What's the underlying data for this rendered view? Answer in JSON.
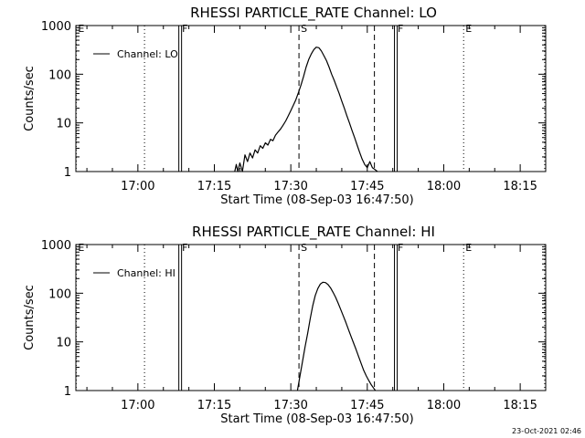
{
  "chart_data": [
    {
      "type": "line",
      "title": "RHESSI PARTICLE_RATE Channel: LO",
      "xlabel": "Start Time (08-Sep-03 16:47:50)",
      "ylabel": "Counts/sec",
      "yscale": "log",
      "ylim": [
        1,
        1000
      ],
      "xlim_min": [
        47.833,
        140.0
      ],
      "xticks": [
        {
          "t": 60,
          "label": "17:00"
        },
        {
          "t": 75,
          "label": "17:15"
        },
        {
          "t": 90,
          "label": "17:30"
        },
        {
          "t": 105,
          "label": "17:45"
        },
        {
          "t": 120,
          "label": "18:00"
        },
        {
          "t": 135,
          "label": "18:15"
        }
      ],
      "yticks": [
        {
          "v": 1,
          "label": "1"
        },
        {
          "v": 10,
          "label": "10"
        },
        {
          "v": 100,
          "label": "100"
        },
        {
          "v": 1000,
          "label": "1000"
        }
      ],
      "legend": {
        "label": "Channel: LO",
        "placement": "top-left"
      },
      "markers": [
        {
          "t": 47.9,
          "label": "E",
          "style": "dotted"
        },
        {
          "t": 61.3,
          "label": "",
          "style": "dotted"
        },
        {
          "t": 68.3,
          "label": "F",
          "style": "double-solid"
        },
        {
          "t": 91.6,
          "label": "S",
          "style": "dashed"
        },
        {
          "t": 106.4,
          "label": "",
          "style": "dashed"
        },
        {
          "t": 110.6,
          "label": "F",
          "style": "double-solid"
        },
        {
          "t": 123.9,
          "label": "E",
          "style": "dotted"
        },
        {
          "t": 139.8,
          "label": "",
          "style": "dotted"
        }
      ],
      "series": [
        {
          "name": "Channel: LO",
          "x": [
            79.0,
            79.3,
            79.6,
            80.0,
            80.5,
            81.0,
            81.5,
            82.0,
            82.5,
            83.0,
            83.5,
            84.0,
            84.5,
            85.0,
            85.5,
            86.0,
            86.5,
            87.0,
            87.5,
            88.0,
            88.5,
            89.0,
            89.5,
            90.0,
            90.5,
            91.0,
            91.5,
            92.0,
            92.5,
            93.0,
            93.5,
            94.0,
            94.5,
            95.0,
            95.5,
            96.0,
            96.5,
            97.0,
            97.5,
            98.0,
            98.5,
            99.0,
            99.5,
            100.0,
            100.5,
            101.0,
            101.5,
            102.0,
            102.5,
            103.0,
            103.5,
            104.0,
            104.5,
            105.0,
            105.5,
            106.0,
            106.5,
            107.0
          ],
          "y": [
            1,
            1.4,
            1,
            1.5,
            1,
            2.2,
            1.6,
            2.4,
            1.9,
            2.8,
            2.4,
            3.4,
            3.0,
            3.9,
            3.5,
            4.6,
            4.3,
            5.6,
            6.5,
            7.5,
            9.0,
            11,
            14,
            18,
            23,
            30,
            42,
            60,
            90,
            140,
            200,
            260,
            320,
            360,
            350,
            300,
            240,
            190,
            140,
            100,
            75,
            55,
            40,
            28,
            20,
            14,
            10,
            7,
            5,
            3.5,
            2.5,
            1.8,
            1.4,
            1.2,
            1.6,
            1.2,
            1.1,
            1
          ]
        }
      ]
    },
    {
      "type": "line",
      "title": "RHESSI PARTICLE_RATE Channel: HI",
      "xlabel": "Start Time (08-Sep-03 16:47:50)",
      "ylabel": "Counts/sec",
      "yscale": "log",
      "ylim": [
        1,
        1000
      ],
      "xlim_min": [
        47.833,
        140.0
      ],
      "xticks": [
        {
          "t": 60,
          "label": "17:00"
        },
        {
          "t": 75,
          "label": "17:15"
        },
        {
          "t": 90,
          "label": "17:30"
        },
        {
          "t": 105,
          "label": "17:45"
        },
        {
          "t": 120,
          "label": "18:00"
        },
        {
          "t": 135,
          "label": "18:15"
        }
      ],
      "yticks": [
        {
          "v": 1,
          "label": "1"
        },
        {
          "v": 10,
          "label": "10"
        },
        {
          "v": 100,
          "label": "100"
        },
        {
          "v": 1000,
          "label": "1000"
        }
      ],
      "legend": {
        "label": "Channel: HI",
        "placement": "top-left"
      },
      "markers": [
        {
          "t": 47.9,
          "label": "E",
          "style": "dotted"
        },
        {
          "t": 61.3,
          "label": "",
          "style": "dotted"
        },
        {
          "t": 68.3,
          "label": "F",
          "style": "double-solid"
        },
        {
          "t": 91.6,
          "label": "S",
          "style": "dashed"
        },
        {
          "t": 106.4,
          "label": "",
          "style": "dashed"
        },
        {
          "t": 110.6,
          "label": "F",
          "style": "double-solid"
        },
        {
          "t": 123.9,
          "label": "E",
          "style": "dotted"
        },
        {
          "t": 139.8,
          "label": "",
          "style": "dotted"
        }
      ],
      "series": [
        {
          "name": "Channel: HI",
          "x": [
            91.3,
            91.8,
            92.3,
            92.8,
            93.3,
            93.8,
            94.3,
            94.8,
            95.3,
            95.8,
            96.3,
            96.8,
            97.3,
            97.8,
            98.3,
            98.8,
            99.3,
            99.8,
            100.3,
            100.8,
            101.3,
            101.8,
            102.3,
            102.8,
            103.3,
            103.8,
            104.3,
            104.8,
            105.3,
            105.8,
            106.3,
            106.6
          ],
          "y": [
            1,
            2,
            4,
            8,
            15,
            30,
            55,
            90,
            125,
            155,
            168,
            165,
            150,
            128,
            104,
            82,
            62,
            46,
            34,
            25,
            18,
            13,
            9.5,
            7,
            5,
            3.6,
            2.6,
            2,
            1.6,
            1.3,
            1.1,
            1
          ]
        }
      ]
    }
  ],
  "footer": {
    "timestamp": "23-Oct-2021 02:46"
  }
}
